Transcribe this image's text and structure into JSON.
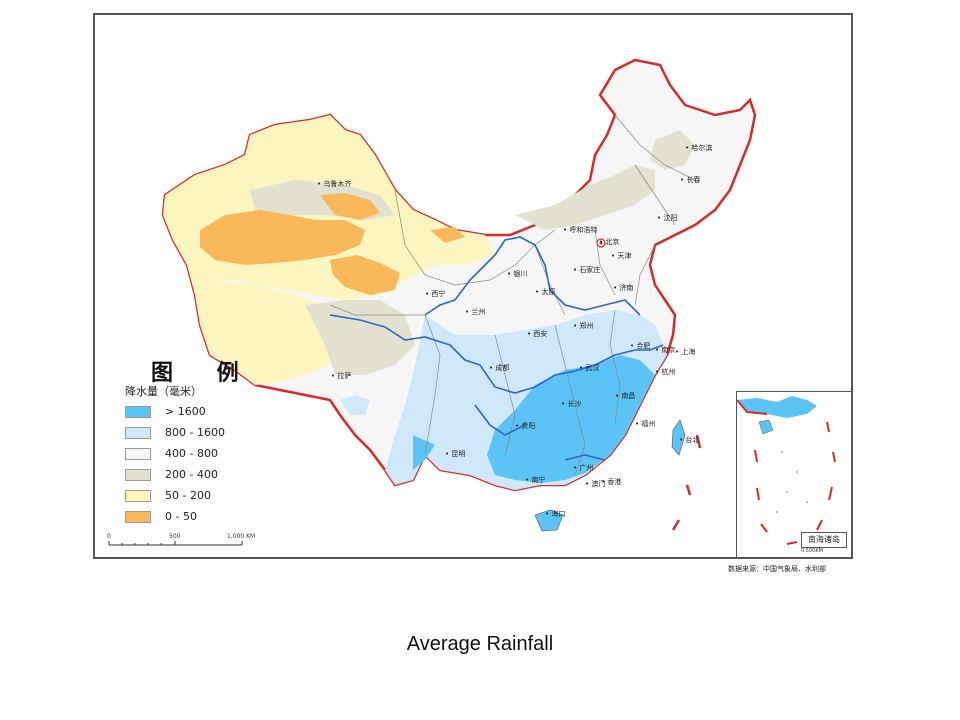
{
  "caption": "Average Rainfall",
  "legend": {
    "title": "图 例",
    "subtitle": "降水量（毫米）",
    "items": [
      {
        "label": "> 1600",
        "color": "#5bc3f5"
      },
      {
        "label": "800 - 1600",
        "color": "#cfe9fb"
      },
      {
        "label": "400 - 800",
        "color": "#f6f6f6"
      },
      {
        "label": "200 - 400",
        "color": "#e3e2d0"
      },
      {
        "label": "50 - 200",
        "color": "#fbf6c0"
      },
      {
        "label": "0 - 50",
        "color": "#f9b95a"
      }
    ]
  },
  "scale": {
    "labels": [
      "0",
      "500",
      "1,000 KM"
    ]
  },
  "inset": {
    "label": "南海诸岛",
    "scale": "0 500KM"
  },
  "data_source": "数据来源：中国气象局、水利部",
  "cities": [
    {
      "name": "乌鲁木齐"
    },
    {
      "name": "哈尔滨"
    },
    {
      "name": "长春"
    },
    {
      "name": "沈阳"
    },
    {
      "name": "呼和浩特"
    },
    {
      "name": "北京"
    },
    {
      "name": "天津"
    },
    {
      "name": "石家庄"
    },
    {
      "name": "银川"
    },
    {
      "name": "太原"
    },
    {
      "name": "济南"
    },
    {
      "name": "西宁"
    },
    {
      "name": "兰州"
    },
    {
      "name": "郑州"
    },
    {
      "name": "西安"
    },
    {
      "name": "合肥"
    },
    {
      "name": "南京"
    },
    {
      "name": "上海"
    },
    {
      "name": "拉萨"
    },
    {
      "name": "成都"
    },
    {
      "name": "武汉"
    },
    {
      "name": "杭州"
    },
    {
      "name": "南昌"
    },
    {
      "name": "长沙"
    },
    {
      "name": "贵阳"
    },
    {
      "name": "福州"
    },
    {
      "name": "昆明"
    },
    {
      "name": "台北"
    },
    {
      "name": "广州"
    },
    {
      "name": "南宁"
    },
    {
      "name": "澳门"
    },
    {
      "name": "香港"
    },
    {
      "name": "海口"
    }
  ]
}
